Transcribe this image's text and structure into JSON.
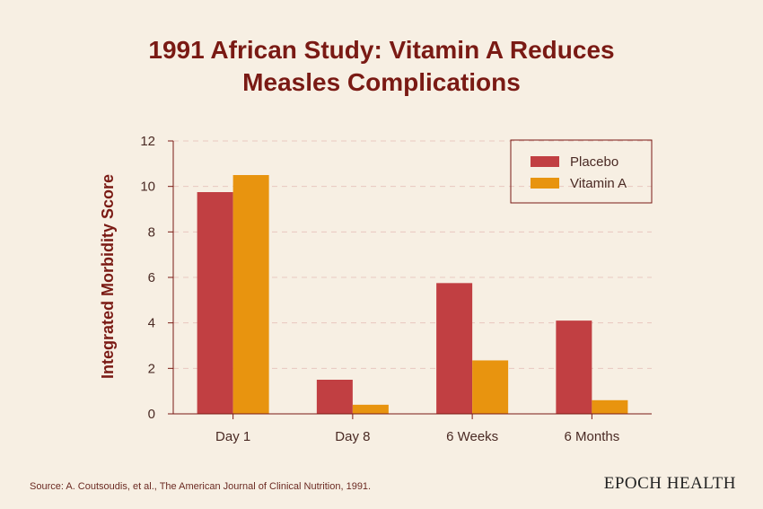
{
  "title_line1": "1991 African Study: Vitamin A Reduces",
  "title_line2": "Measles Complications",
  "source": "Source: A. Coutsoudis, et al., The American Journal of Clinical Nutrition, 1991.",
  "brand": "EPOCH HEALTH",
  "colors": {
    "background": "#f7efe3",
    "title": "#7a1a14",
    "placebo": "#c13f42",
    "vitamin_a": "#e8940f",
    "gridline": "#e8c8c0",
    "axis": "#7a1a14"
  },
  "chart_data": {
    "type": "bar",
    "categories": [
      "Day 1",
      "Day 8",
      "6 Weeks",
      "6 Months"
    ],
    "series": [
      {
        "name": "Placebo",
        "values": [
          9.75,
          1.5,
          5.75,
          4.1
        ]
      },
      {
        "name": "Vitamin A",
        "values": [
          10.5,
          0.4,
          2.35,
          0.6
        ]
      }
    ],
    "ylabel": "Integrated Morbidity Score",
    "ylim": [
      0,
      12
    ],
    "yticks": [
      0,
      2,
      4,
      6,
      8,
      10,
      12
    ],
    "grid": true,
    "legend_position": "top-right"
  }
}
